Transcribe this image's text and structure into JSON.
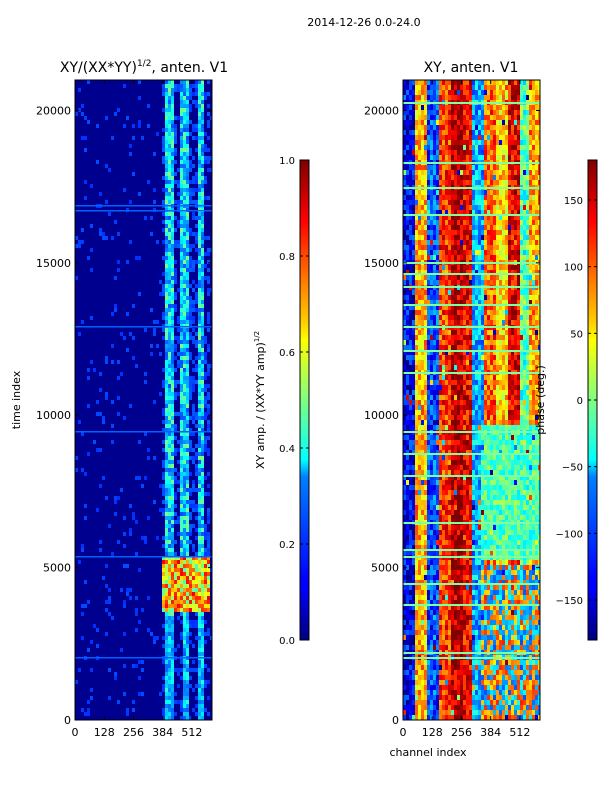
{
  "figure": {
    "suptitle": "2014-12-26 0.0-24.0"
  },
  "chart_data": [
    {
      "type": "heatmap",
      "title_base": "XY/(XX*YY)",
      "title_exp": "1/2",
      "title_rest": ", anten. V1",
      "xlabel": "",
      "ylabel": "time index",
      "xlim": [
        0,
        600
      ],
      "ylim": [
        0,
        21000
      ],
      "xticks": [
        0,
        128,
        256,
        384,
        512
      ],
      "yticks": [
        0,
        5000,
        10000,
        15000,
        20000
      ],
      "colorbar": {
        "label_base": "XY amp. / (XX*YY amp)",
        "label_exp": "1/2",
        "range": [
          0.0,
          1.0
        ],
        "ticks": [
          "0.0",
          "0.2",
          "0.4",
          "0.6",
          "0.8",
          "1.0"
        ],
        "colormap": "jet"
      }
    },
    {
      "type": "heatmap",
      "title": "XY, anten. V1",
      "xlabel": "channel index",
      "ylabel": "",
      "xlim": [
        0,
        600
      ],
      "ylim": [
        0,
        21000
      ],
      "xticks": [
        0,
        128,
        256,
        384,
        512
      ],
      "yticks": [
        0,
        5000,
        10000,
        15000,
        20000
      ],
      "colorbar": {
        "label": "phase (deg.)",
        "range": [
          -180,
          180
        ],
        "ticks": [
          "−150",
          "−100",
          "−50",
          "0",
          "50",
          "100",
          "150"
        ],
        "colormap": "jet"
      }
    }
  ]
}
